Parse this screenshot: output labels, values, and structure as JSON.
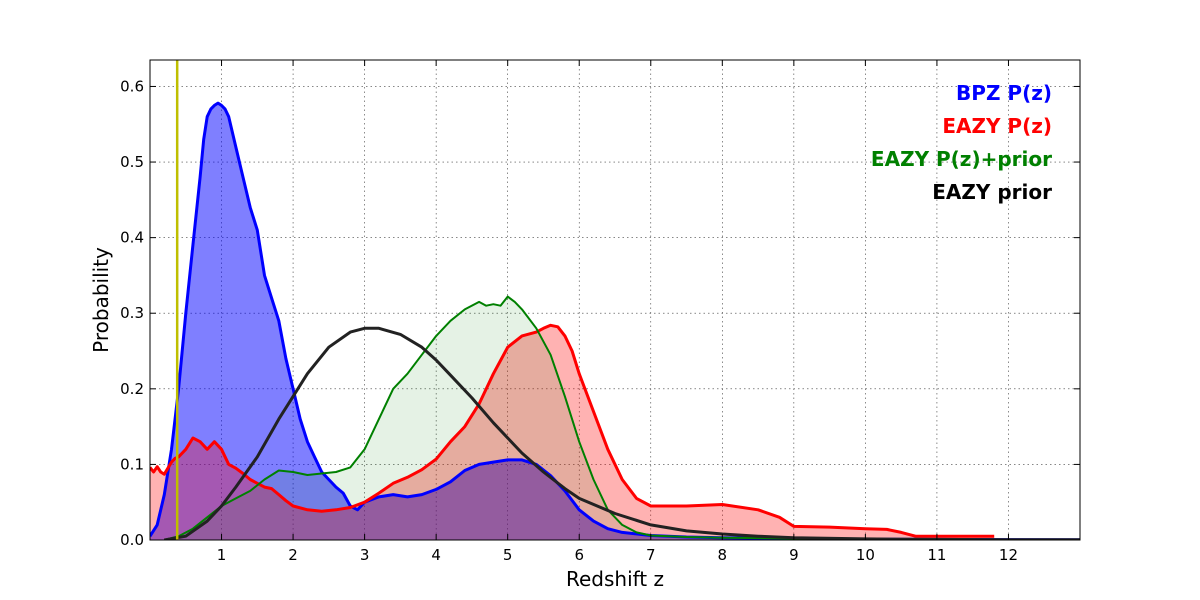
{
  "chart_data": {
    "type": "area",
    "title": "",
    "xlabel": "Redshift z",
    "ylabel": "Probability",
    "xlim": [
      0,
      13
    ],
    "ylim": [
      0,
      0.635
    ],
    "xticks": [
      1,
      2,
      3,
      4,
      5,
      6,
      7,
      8,
      9,
      10,
      11,
      12
    ],
    "yticks": [
      0.0,
      0.1,
      0.2,
      0.3,
      0.4,
      0.5,
      0.6
    ],
    "xtick_labels": [
      "1",
      "2",
      "3",
      "4",
      "5",
      "6",
      "7",
      "8",
      "9",
      "10",
      "11",
      "12"
    ],
    "ytick_labels": [
      "0.0",
      "0.1",
      "0.2",
      "0.3",
      "0.4",
      "0.5",
      "0.6"
    ],
    "grid": true,
    "legend_position": "top-right",
    "vline": {
      "x": 0.38,
      "color": "#bfbf00"
    },
    "series": [
      {
        "name": "BPZ P(z)",
        "color": "#0000ff",
        "fill": "#0000ff",
        "fill_opacity": 0.5,
        "stroke_width": 3,
        "x": [
          0,
          0.1,
          0.2,
          0.3,
          0.4,
          0.5,
          0.6,
          0.7,
          0.75,
          0.8,
          0.85,
          0.9,
          0.95,
          1.0,
          1.05,
          1.1,
          1.2,
          1.3,
          1.4,
          1.5,
          1.6,
          1.7,
          1.8,
          1.9,
          2.0,
          2.1,
          2.2,
          2.3,
          2.4,
          2.5,
          2.6,
          2.7,
          2.8,
          2.9,
          3.0,
          3.2,
          3.4,
          3.6,
          3.8,
          4.0,
          4.2,
          4.4,
          4.6,
          4.8,
          5.0,
          5.2,
          5.4,
          5.6,
          5.8,
          6.0,
          6.2,
          6.4,
          6.6,
          7.0,
          7.5,
          8.0,
          9.0,
          10.0,
          11.0,
          12.0,
          13.0
        ],
        "y": [
          0.005,
          0.02,
          0.06,
          0.12,
          0.2,
          0.3,
          0.39,
          0.48,
          0.53,
          0.56,
          0.57,
          0.575,
          0.578,
          0.575,
          0.57,
          0.56,
          0.52,
          0.48,
          0.44,
          0.41,
          0.35,
          0.32,
          0.29,
          0.24,
          0.2,
          0.16,
          0.13,
          0.11,
          0.09,
          0.08,
          0.07,
          0.062,
          0.045,
          0.04,
          0.05,
          0.057,
          0.06,
          0.057,
          0.06,
          0.067,
          0.077,
          0.092,
          0.1,
          0.103,
          0.106,
          0.106,
          0.1,
          0.085,
          0.065,
          0.04,
          0.025,
          0.015,
          0.01,
          0.006,
          0.004,
          0.003,
          0.002,
          0.001,
          0.0008,
          0.0005,
          0.0003
        ]
      },
      {
        "name": "EAZY P(z)",
        "color": "#ff0000",
        "fill": "#ff0000",
        "fill_opacity": 0.3,
        "stroke_width": 3,
        "x": [
          0,
          0.05,
          0.1,
          0.15,
          0.2,
          0.25,
          0.3,
          0.35,
          0.4,
          0.5,
          0.6,
          0.7,
          0.8,
          0.9,
          1.0,
          1.1,
          1.2,
          1.3,
          1.4,
          1.5,
          1.6,
          1.7,
          1.8,
          1.9,
          2.0,
          2.2,
          2.4,
          2.6,
          2.8,
          3.0,
          3.2,
          3.4,
          3.6,
          3.8,
          4.0,
          4.2,
          4.4,
          4.6,
          4.8,
          5.0,
          5.2,
          5.4,
          5.5,
          5.6,
          5.7,
          5.8,
          5.9,
          6.0,
          6.2,
          6.4,
          6.6,
          6.8,
          7.0,
          7.5,
          8.0,
          8.5,
          8.8,
          9.0,
          9.5,
          10.0,
          10.3,
          10.5,
          10.7,
          11.0,
          11.5,
          11.8
        ],
        "y": [
          0.096,
          0.09,
          0.097,
          0.09,
          0.087,
          0.095,
          0.103,
          0.108,
          0.11,
          0.12,
          0.135,
          0.13,
          0.12,
          0.13,
          0.12,
          0.1,
          0.095,
          0.088,
          0.08,
          0.075,
          0.07,
          0.068,
          0.06,
          0.052,
          0.045,
          0.04,
          0.038,
          0.04,
          0.043,
          0.05,
          0.062,
          0.075,
          0.083,
          0.093,
          0.107,
          0.13,
          0.15,
          0.18,
          0.22,
          0.255,
          0.27,
          0.275,
          0.28,
          0.284,
          0.282,
          0.27,
          0.25,
          0.22,
          0.17,
          0.12,
          0.08,
          0.055,
          0.045,
          0.045,
          0.047,
          0.04,
          0.03,
          0.018,
          0.017,
          0.015,
          0.014,
          0.01,
          0.005,
          0.005,
          0.005,
          0.005
        ]
      },
      {
        "name": "EAZY P(z)+prior",
        "color": "#008000",
        "fill": "#008000",
        "fill_opacity": 0.1,
        "stroke_width": 2,
        "x": [
          0.2,
          0.4,
          0.6,
          0.8,
          1.0,
          1.2,
          1.4,
          1.6,
          1.8,
          2.0,
          2.2,
          2.4,
          2.6,
          2.8,
          3.0,
          3.2,
          3.4,
          3.6,
          3.8,
          4.0,
          4.2,
          4.4,
          4.6,
          4.7,
          4.8,
          4.9,
          5.0,
          5.1,
          5.2,
          5.4,
          5.6,
          5.8,
          6.0,
          6.2,
          6.4,
          6.6,
          6.8,
          7.0,
          7.5,
          8.0,
          9.0,
          10.0
        ],
        "y": [
          0.0,
          0.005,
          0.015,
          0.03,
          0.045,
          0.055,
          0.065,
          0.08,
          0.092,
          0.09,
          0.086,
          0.088,
          0.09,
          0.096,
          0.12,
          0.16,
          0.2,
          0.22,
          0.245,
          0.27,
          0.29,
          0.305,
          0.315,
          0.31,
          0.312,
          0.31,
          0.322,
          0.315,
          0.305,
          0.28,
          0.245,
          0.19,
          0.13,
          0.08,
          0.04,
          0.02,
          0.01,
          0.006,
          0.004,
          0.003,
          0.002,
          0.001
        ]
      },
      {
        "name": "EAZY prior",
        "color": "#222222",
        "fill": "none",
        "fill_opacity": 0,
        "stroke_width": 3,
        "x": [
          0.2,
          0.5,
          0.8,
          1.0,
          1.2,
          1.5,
          1.8,
          2.0,
          2.2,
          2.5,
          2.8,
          3.0,
          3.2,
          3.5,
          3.8,
          4.0,
          4.2,
          4.5,
          4.8,
          5.0,
          5.2,
          5.5,
          5.8,
          6.0,
          6.5,
          7.0,
          7.5,
          8.0,
          8.5,
          9.0,
          10.0,
          11.0,
          12.0,
          13.0
        ],
        "y": [
          0.0,
          0.005,
          0.025,
          0.045,
          0.07,
          0.11,
          0.16,
          0.19,
          0.22,
          0.255,
          0.275,
          0.28,
          0.28,
          0.272,
          0.255,
          0.238,
          0.218,
          0.188,
          0.155,
          0.135,
          0.115,
          0.09,
          0.068,
          0.055,
          0.035,
          0.02,
          0.012,
          0.008,
          0.005,
          0.003,
          0.0015,
          0.0008,
          0.0004,
          0.0002
        ]
      }
    ],
    "legend": [
      {
        "label": "BPZ P(z)",
        "color": "#0000ff"
      },
      {
        "label": "EAZY P(z)",
        "color": "#ff0000"
      },
      {
        "label": "EAZY P(z)+prior",
        "color": "#008000"
      },
      {
        "label": "EAZY prior",
        "color": "#000000"
      }
    ]
  }
}
